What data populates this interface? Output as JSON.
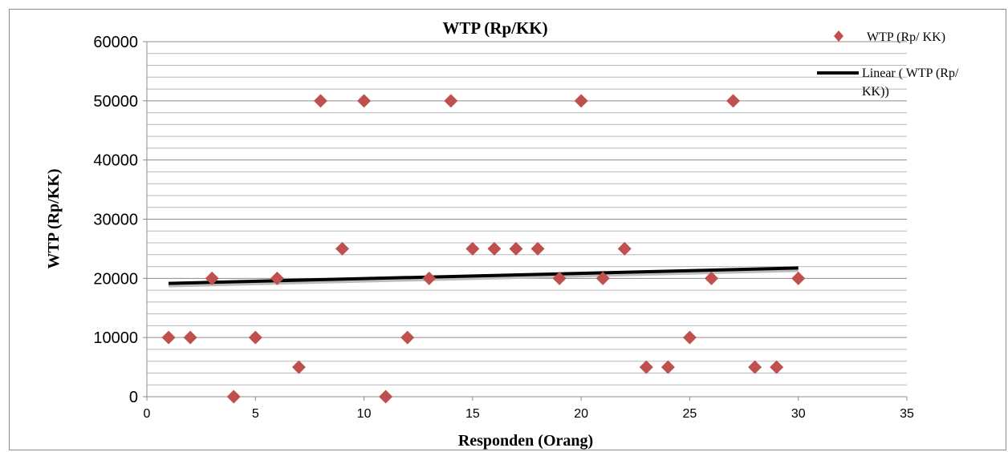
{
  "chart_data": {
    "type": "scatter",
    "title": "WTP (Rp/KK)",
    "xlabel": "Responden (Orang)",
    "ylabel": "WTP (Rp/KK)",
    "xlim": [
      0,
      35
    ],
    "ylim": [
      0,
      60000
    ],
    "xticks": [
      0,
      5,
      10,
      15,
      20,
      25,
      30,
      35
    ],
    "yticks": [
      0,
      10000,
      20000,
      30000,
      40000,
      50000,
      60000
    ],
    "grid": "horizontal minor lines every 2000",
    "legend_position": "top-right",
    "series": [
      {
        "name": "WTP (Rp/ KK)",
        "marker": "diamond",
        "color": "#c0504d",
        "x": [
          1,
          2,
          3,
          4,
          5,
          6,
          7,
          8,
          9,
          10,
          11,
          12,
          13,
          14,
          15,
          16,
          17,
          18,
          19,
          20,
          21,
          22,
          23,
          24,
          25,
          26,
          27,
          28,
          29,
          30
        ],
        "y": [
          10000,
          10000,
          20000,
          0,
          10000,
          20000,
          5000,
          50000,
          25000,
          50000,
          0,
          10000,
          20000,
          50000,
          25000,
          25000,
          25000,
          25000,
          20000,
          50000,
          20000,
          25000,
          5000,
          5000,
          10000,
          20000,
          50000,
          5000,
          5000,
          20000
        ]
      }
    ],
    "trendline": {
      "name": "Linear ( WTP (Rp/ KK))",
      "legend_lines": [
        "Linear ( WTP (Rp/",
        "KK))"
      ],
      "type": "linear",
      "color": "#000000",
      "x": [
        1,
        30
      ],
      "y": [
        19150,
        21750
      ]
    }
  }
}
